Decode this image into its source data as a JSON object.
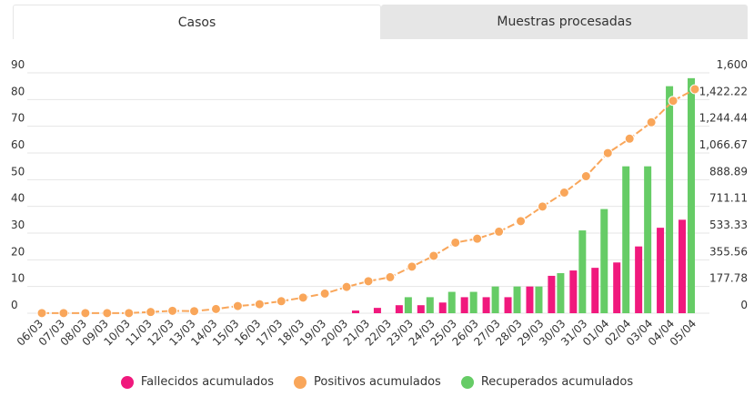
{
  "tabs": [
    {
      "label": "Casos",
      "active": true
    },
    {
      "label": "Muestras procesadas",
      "active": false
    }
  ],
  "chart_data": {
    "type": "bar+line",
    "categories": [
      "06/03",
      "07/03",
      "08/03",
      "09/03",
      "10/03",
      "11/03",
      "12/03",
      "13/03",
      "14/03",
      "15/03",
      "16/03",
      "17/03",
      "18/03",
      "19/03",
      "20/03",
      "21/03",
      "22/03",
      "23/03",
      "24/03",
      "25/03",
      "26/03",
      "27/03",
      "28/03",
      "29/03",
      "30/03",
      "31/03",
      "01/04",
      "02/04",
      "03/04",
      "04/04",
      "05/04"
    ],
    "left_axis": {
      "range": [
        0,
        90
      ],
      "ticks": [
        "0",
        "10",
        "20",
        "30",
        "40",
        "50",
        "60",
        "70",
        "80",
        "90"
      ]
    },
    "right_axis": {
      "range": [
        0,
        1600
      ],
      "ticks": [
        "0",
        "177.78",
        "355.56",
        "533.33",
        "711.11",
        "888.89",
        "1,066.67",
        "1,244.44",
        "1,422.22",
        "1,600"
      ]
    },
    "grid": true,
    "legend_position": "bottom",
    "series": [
      {
        "name": "Fallecidos acumulados",
        "type": "bar",
        "axis": "left",
        "color": "#f0197d",
        "values": [
          0,
          0,
          0,
          0,
          0,
          0,
          0,
          0,
          0,
          0,
          0,
          0,
          0,
          0,
          0,
          1,
          2,
          3,
          3,
          4,
          6,
          6,
          6,
          10,
          14,
          16,
          17,
          19,
          25,
          32,
          35
        ]
      },
      {
        "name": "Positivos acumulados",
        "type": "line",
        "axis": "right",
        "color": "#f9a65a",
        "values": [
          1,
          1,
          1,
          1,
          1,
          8,
          16,
          14,
          28,
          48,
          60,
          80,
          104,
          131,
          175,
          213,
          240,
          310,
          382,
          470,
          496,
          543,
          613,
          710,
          803,
          912,
          1066,
          1162,
          1271,
          1414,
          1491
        ]
      },
      {
        "name": "Recuperados acumulados",
        "type": "bar",
        "axis": "left",
        "color": "#66cc66",
        "values": [
          0,
          0,
          0,
          0,
          0,
          0,
          0,
          0,
          0,
          0,
          0,
          0,
          0,
          0,
          0,
          0,
          0,
          6,
          6,
          8,
          8,
          10,
          10,
          10,
          15,
          31,
          39,
          55,
          55,
          85,
          88
        ]
      }
    ]
  }
}
